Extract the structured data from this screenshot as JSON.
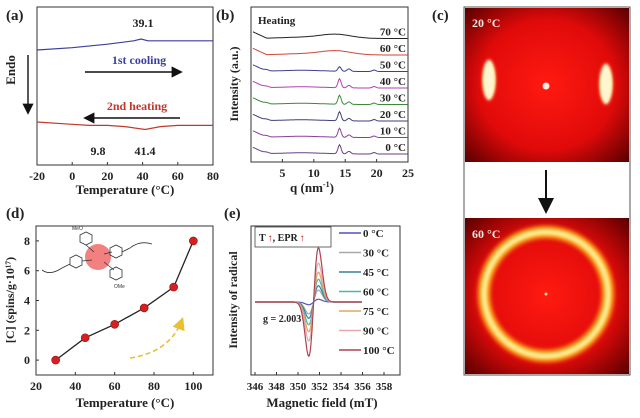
{
  "chart_data": [
    {
      "panel": "(a)",
      "type": "line",
      "xlabel": "Temperature (°C)",
      "ylabel": "Endo",
      "xlim": [
        -20,
        80
      ],
      "xticks": [
        "-20",
        "0",
        "20",
        "40",
        "60",
        "80"
      ],
      "series": [
        {
          "name": "1st cooling",
          "color": "#3a3fa0",
          "x": [
            -20,
            0,
            20,
            35,
            39.1,
            43,
            50,
            80
          ],
          "y": [
            0.62,
            0.66,
            0.72,
            0.78,
            0.81,
            0.78,
            0.78,
            0.78
          ]
        },
        {
          "name": "2nd heating",
          "color": "#c0392b",
          "x": [
            -20,
            0,
            9.8,
            20,
            30,
            41.4,
            50,
            60,
            80
          ],
          "y": [
            -0.62,
            -0.66,
            -0.68,
            -0.68,
            -0.7,
            -0.75,
            -0.7,
            -0.68,
            -0.68
          ]
        }
      ],
      "annotations": [
        "39.1",
        "9.8",
        "41.4"
      ],
      "labels": {
        "cooling": "1st cooling",
        "heating": "2nd heating"
      }
    },
    {
      "panel": "(b)",
      "type": "line",
      "title": "Heating",
      "xlabel": "q (nm-1)",
      "ylabel": "Intensity (a.u.)",
      "xlim": [
        0,
        25
      ],
      "xticks": [
        "5",
        "10",
        "15",
        "20",
        "25"
      ],
      "series": [
        {
          "name": "0 °C",
          "color": "#6a3f86"
        },
        {
          "name": "10 °C",
          "color": "#8a3f9a"
        },
        {
          "name": "20 °C",
          "color": "#3e3f7a"
        },
        {
          "name": "30 °C",
          "color": "#3a8a3a"
        },
        {
          "name": "40 °C",
          "color": "#b040b0"
        },
        {
          "name": "50 °C",
          "color": "#3a3f95"
        },
        {
          "name": "60 °C",
          "color": "#d0453a"
        },
        {
          "name": "70 °C",
          "color": "#222222"
        }
      ]
    },
    {
      "panel": "(d)",
      "type": "line",
      "xlabel": "Temperature (°C)",
      "ylabel": "[C] (spins/g·10¹⁷)",
      "xlim": [
        20,
        110
      ],
      "ylim": [
        -1,
        9
      ],
      "xticks": [
        "20",
        "40",
        "60",
        "80",
        "100"
      ],
      "yticks": [
        "0",
        "2",
        "4",
        "6",
        "8"
      ],
      "x": [
        30,
        45,
        60,
        75,
        90,
        100
      ],
      "y": [
        0,
        1.5,
        2.4,
        3.5,
        4.9,
        8.0
      ],
      "marker_color": "#d42020"
    },
    {
      "panel": "(e)",
      "type": "line",
      "xlabel": "Magnetic field (mT)",
      "ylabel": "Intensity of radical",
      "xlim": [
        346,
        358
      ],
      "xticks": [
        "346",
        "348",
        "350",
        "352",
        "354",
        "356",
        "358"
      ],
      "annotation": "g = 2.003",
      "box_label": {
        "t": "T",
        "epr": ", EPR"
      },
      "series": [
        {
          "name": "0 °C",
          "color": "#5050c8",
          "amp": 0.05
        },
        {
          "name": "30 °C",
          "color": "#a8a8a8",
          "amp": 0.22
        },
        {
          "name": "45 °C",
          "color": "#3a7fa0",
          "amp": 0.3
        },
        {
          "name": "60 °C",
          "color": "#4fb8a0",
          "amp": 0.42
        },
        {
          "name": "75 °C",
          "color": "#e0a860",
          "amp": 0.55
        },
        {
          "name": "90 °C",
          "color": "#e8a8b0",
          "amp": 0.72
        },
        {
          "name": "100 °C",
          "color": "#b04050",
          "amp": 1.0
        }
      ]
    }
  ],
  "panels": {
    "a": "(a)",
    "b": "(b)",
    "c": "(c)",
    "d": "(d)",
    "e": "(e)"
  },
  "waxs": {
    "top_label": "20 °C",
    "bottom_label": "60 °C"
  }
}
